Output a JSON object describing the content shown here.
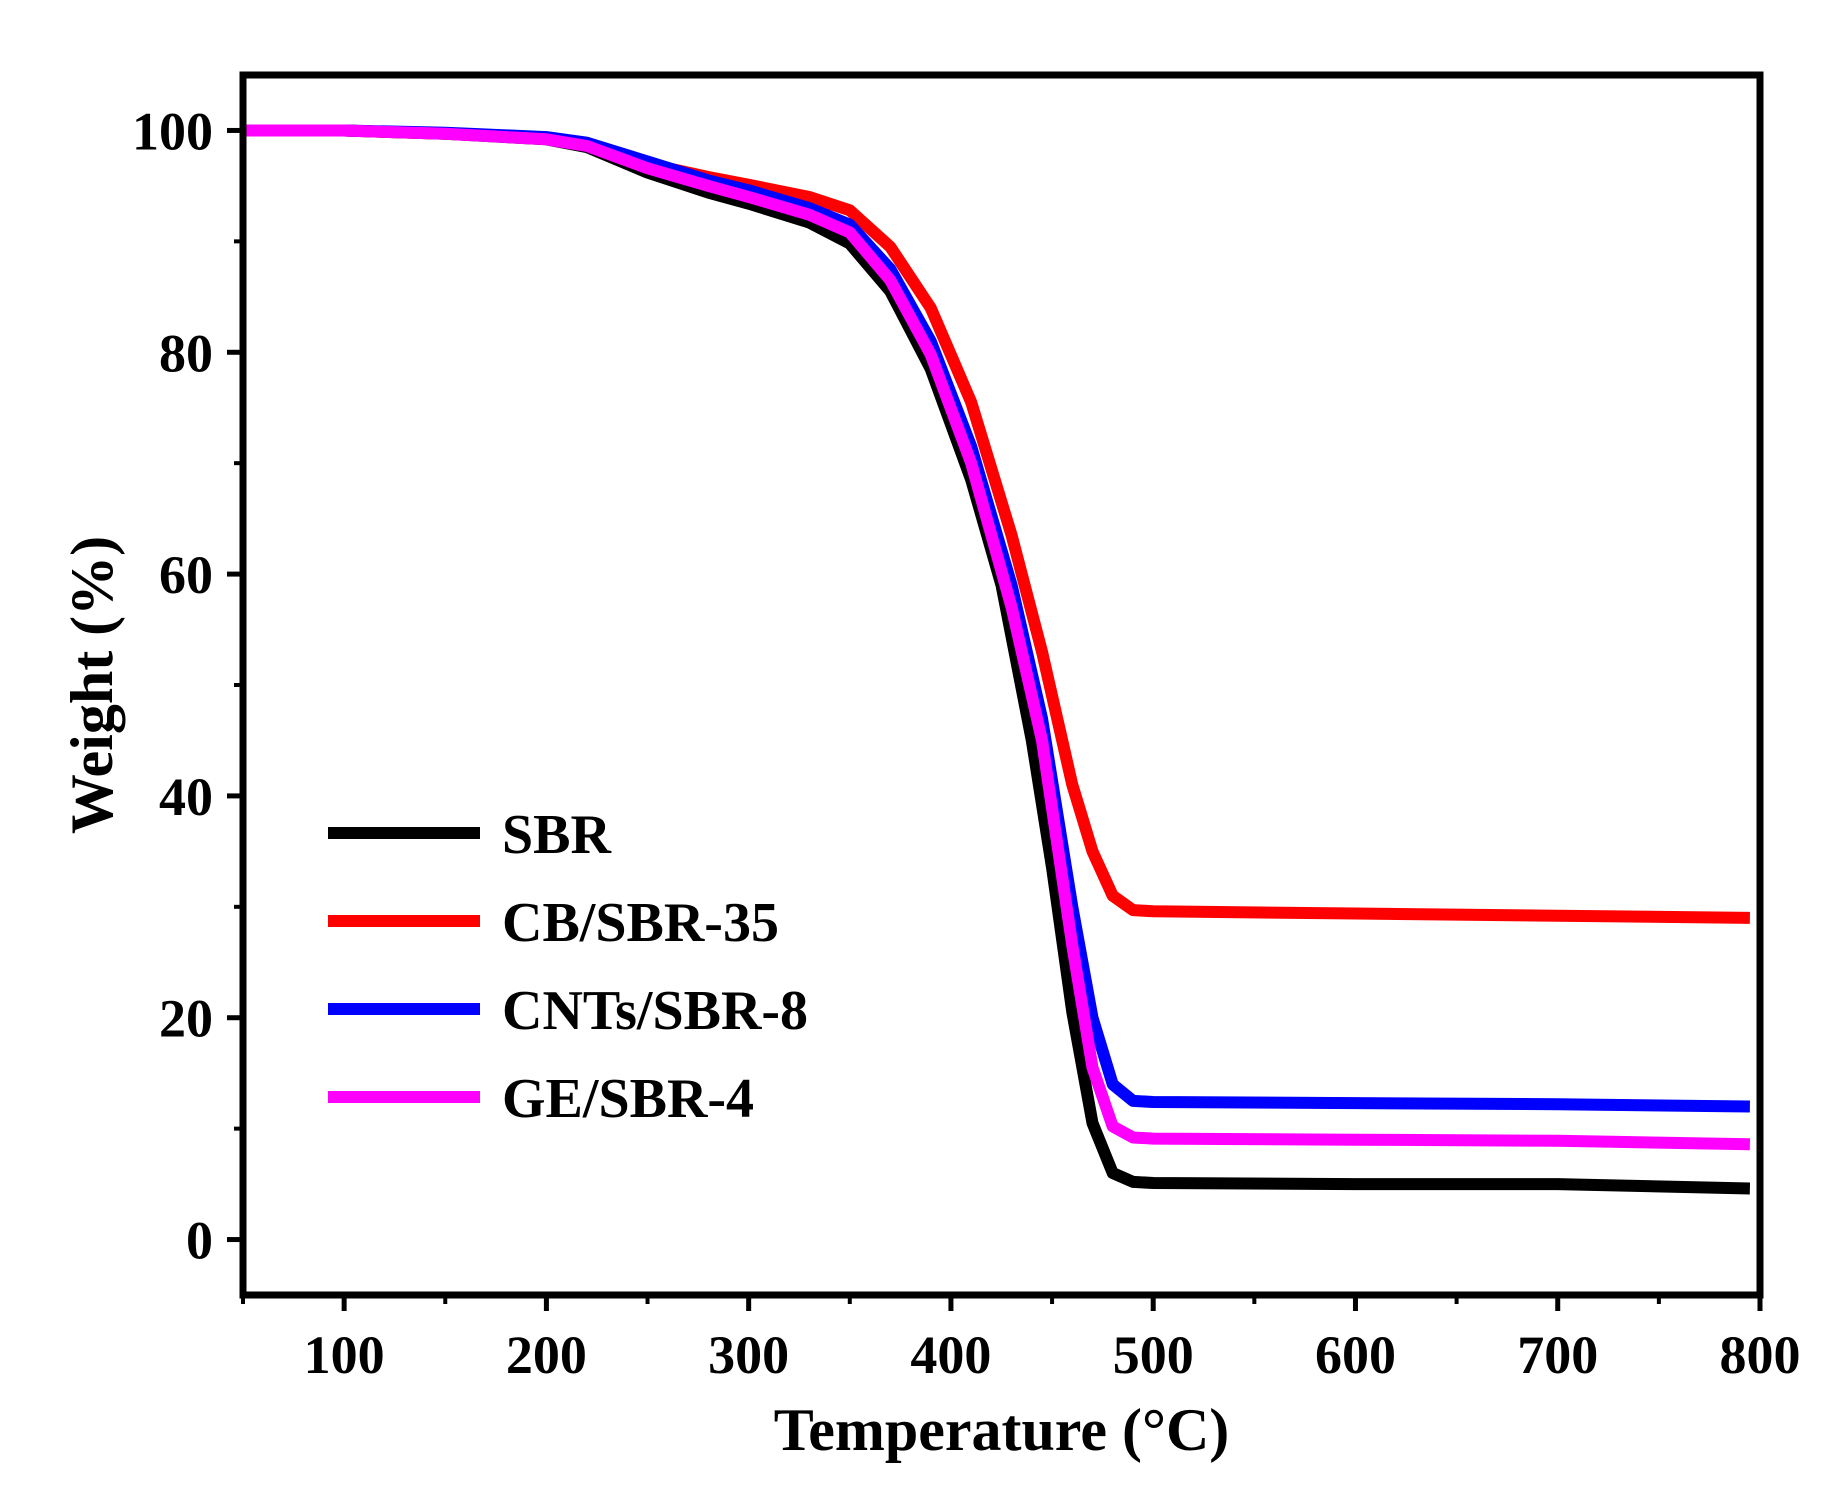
{
  "chart_data": {
    "type": "line",
    "title": "",
    "xlabel": "Temperature (°C)",
    "ylabel": "Weight (%)",
    "xlim": [
      50,
      800
    ],
    "ylim": [
      -5,
      105
    ],
    "xticks": [
      100,
      200,
      300,
      400,
      500,
      600,
      700,
      800
    ],
    "yticks": [
      0,
      20,
      40,
      60,
      80,
      100
    ],
    "grid": false,
    "legend_position": "lower-left",
    "series": [
      {
        "name": "SBR",
        "color": "#000000",
        "x": [
          50,
          100,
          150,
          200,
          220,
          250,
          280,
          300,
          330,
          350,
          370,
          390,
          410,
          425,
          440,
          450,
          460,
          470,
          480,
          490,
          500,
          600,
          700,
          795
        ],
        "y": [
          100,
          100,
          99.7,
          99.2,
          98.5,
          96.2,
          94.4,
          93.4,
          91.7,
          89.8,
          85.5,
          78.5,
          68.5,
          59.0,
          45.0,
          33.5,
          20.5,
          10.5,
          6.0,
          5.2,
          5.1,
          5.0,
          5.0,
          4.6
        ]
      },
      {
        "name": "CB/SBR-35",
        "color": "#ff0000",
        "x": [
          50,
          100,
          150,
          200,
          220,
          250,
          280,
          300,
          330,
          350,
          370,
          390,
          410,
          430,
          445,
          460,
          470,
          480,
          490,
          500,
          600,
          700,
          795
        ],
        "y": [
          100,
          100,
          99.7,
          99.3,
          98.7,
          97.0,
          95.8,
          95.1,
          94.0,
          92.8,
          89.5,
          84.0,
          75.5,
          63.5,
          53.0,
          41.0,
          35.0,
          31.0,
          29.7,
          29.6,
          29.4,
          29.2,
          29.0
        ]
      },
      {
        "name": "CNTs/SBR-8",
        "color": "#0000ff",
        "x": [
          50,
          100,
          150,
          200,
          220,
          250,
          280,
          300,
          330,
          350,
          370,
          390,
          410,
          430,
          445,
          460,
          470,
          480,
          490,
          500,
          600,
          700,
          795
        ],
        "y": [
          100,
          100,
          99.8,
          99.4,
          98.9,
          97.2,
          95.5,
          94.6,
          93.0,
          91.5,
          87.5,
          81.0,
          71.5,
          59.0,
          47.0,
          30.0,
          20.0,
          14.0,
          12.5,
          12.4,
          12.3,
          12.2,
          12.0
        ]
      },
      {
        "name": "GE/SBR-4",
        "color": "#ff00ff",
        "x": [
          50,
          100,
          150,
          200,
          220,
          250,
          280,
          300,
          330,
          350,
          370,
          390,
          410,
          430,
          445,
          460,
          470,
          480,
          490,
          500,
          600,
          700,
          795
        ],
        "y": [
          100,
          100,
          99.7,
          99.2,
          98.6,
          96.6,
          95.0,
          94.0,
          92.4,
          90.8,
          86.5,
          79.8,
          70.0,
          57.0,
          45.0,
          26.5,
          15.5,
          10.2,
          9.2,
          9.1,
          9.0,
          8.9,
          8.6
        ]
      }
    ]
  }
}
